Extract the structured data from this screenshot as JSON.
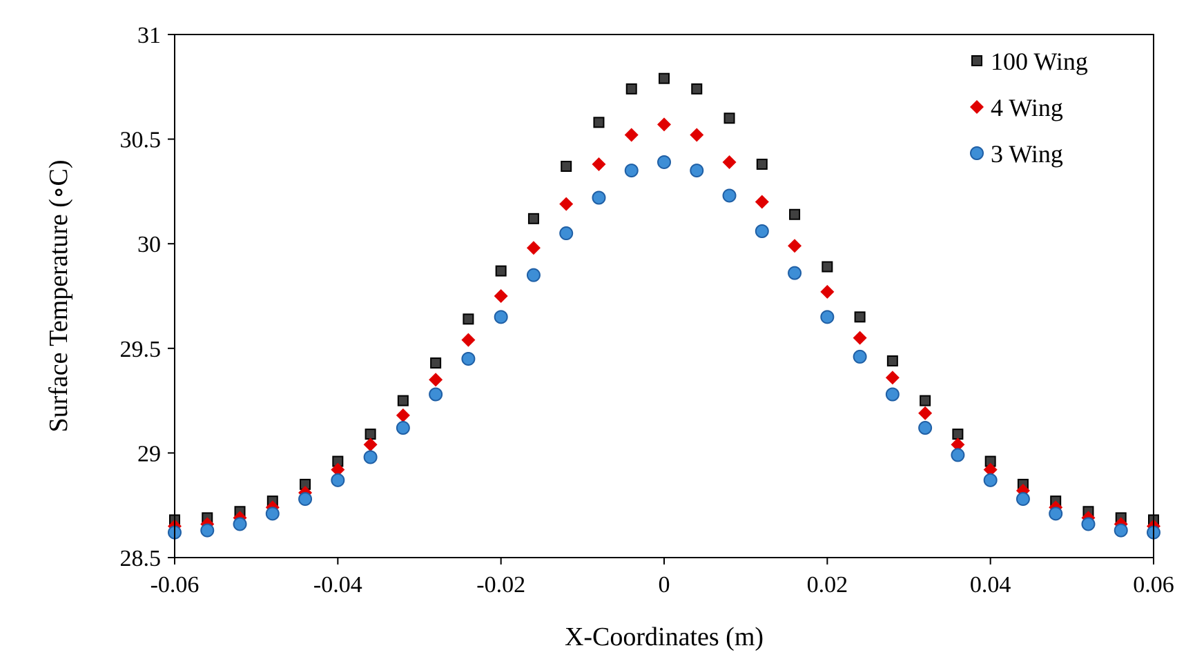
{
  "chart_data": {
    "type": "scatter",
    "title": "",
    "xlabel": "X-Coordinates (m)",
    "ylabel": "Surface Temperature (∘C)",
    "xlim": [
      -0.06,
      0.06
    ],
    "ylim": [
      28.5,
      31
    ],
    "x_ticks": [
      -0.06,
      -0.04,
      -0.02,
      0,
      0.02,
      0.04,
      0.06
    ],
    "x_tick_labels": [
      "-0.06",
      "-0.04",
      "-0.02",
      "0",
      "0.02",
      "0.04",
      "0.06"
    ],
    "y_ticks": [
      28.5,
      29,
      29.5,
      30,
      30.5,
      31
    ],
    "y_tick_labels": [
      "28.5",
      "29",
      "29.5",
      "30",
      "30.5",
      "31"
    ],
    "grid": false,
    "legend_position": "top-right",
    "x": [
      -0.06,
      -0.056,
      -0.052,
      -0.048,
      -0.044,
      -0.04,
      -0.036,
      -0.032,
      -0.028,
      -0.024,
      -0.02,
      -0.016,
      -0.012,
      -0.008,
      -0.004,
      0,
      0.004,
      0.008,
      0.012,
      0.016,
      0.02,
      0.024,
      0.028,
      0.032,
      0.036,
      0.04,
      0.044,
      0.048,
      0.052,
      0.056,
      0.06
    ],
    "series": [
      {
        "name": "100 Wing",
        "marker": "square",
        "color": "#404040",
        "values": [
          28.68,
          28.69,
          28.72,
          28.77,
          28.85,
          28.96,
          29.09,
          29.25,
          29.43,
          29.64,
          29.87,
          30.12,
          30.37,
          30.58,
          30.74,
          30.79,
          30.74,
          30.6,
          30.38,
          30.14,
          29.89,
          29.65,
          29.44,
          29.25,
          29.09,
          28.96,
          28.85,
          28.77,
          28.72,
          28.69,
          28.68
        ]
      },
      {
        "name": "4 Wing",
        "marker": "diamond",
        "color": "#e00000",
        "values": [
          28.65,
          28.66,
          28.69,
          28.74,
          28.81,
          28.92,
          29.04,
          29.18,
          29.35,
          29.54,
          29.75,
          29.98,
          30.19,
          30.38,
          30.52,
          30.57,
          30.52,
          30.39,
          30.2,
          29.99,
          29.77,
          29.55,
          29.36,
          29.19,
          29.04,
          28.92,
          28.82,
          28.74,
          28.69,
          28.66,
          28.65
        ]
      },
      {
        "name": "3 Wing",
        "marker": "circle",
        "color": "#3d8ed6",
        "values": [
          28.62,
          28.63,
          28.66,
          28.71,
          28.78,
          28.87,
          28.98,
          29.12,
          29.28,
          29.45,
          29.65,
          29.85,
          30.05,
          30.22,
          30.35,
          30.39,
          30.35,
          30.23,
          30.06,
          29.86,
          29.65,
          29.46,
          29.28,
          29.12,
          28.99,
          28.87,
          28.78,
          28.71,
          28.66,
          28.63,
          28.62
        ]
      }
    ]
  }
}
